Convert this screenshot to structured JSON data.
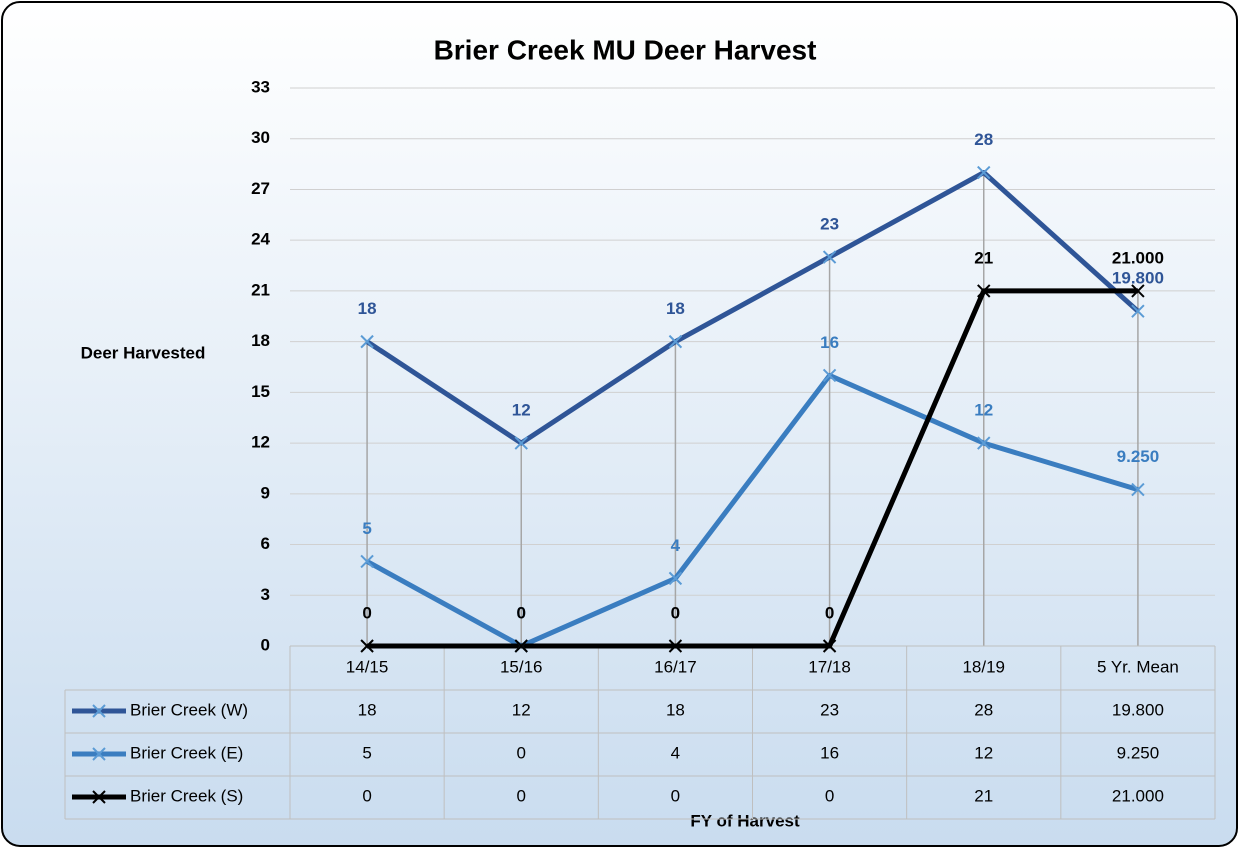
{
  "chart_data": {
    "type": "line",
    "title": "Brier Creek MU Deer Harvest",
    "y_axis_label": "Deer Harvested",
    "x_axis_label": "FY of Harvest",
    "categories": [
      "14/15",
      "15/16",
      "16/17",
      "17/18",
      "18/19",
      "5 Yr. Mean"
    ],
    "series": [
      {
        "name": "Brier Creek (W)",
        "color": "#2f5597",
        "values": [
          18,
          12,
          18,
          23,
          28,
          19.8
        ],
        "value_labels": [
          "18",
          "12",
          "18",
          "23",
          "28",
          "19.800"
        ]
      },
      {
        "name": "Brier Creek (E)",
        "color": "#3a7dc0",
        "values": [
          5,
          0,
          4,
          16,
          12,
          9.25
        ],
        "value_labels": [
          "5",
          "0",
          "4",
          "16",
          "12",
          "9.250"
        ]
      },
      {
        "name": "Brier Creek (S)",
        "color": "#000000",
        "values": [
          0,
          0,
          0,
          0,
          21,
          21
        ],
        "value_labels": [
          "0",
          "0",
          "0",
          "0",
          "21",
          "21.000"
        ]
      }
    ],
    "ylim": [
      0,
      33
    ],
    "yticks": [
      0,
      3,
      6,
      9,
      12,
      15,
      18,
      21,
      24,
      27,
      30,
      33
    ],
    "grid": true,
    "data_table": true
  }
}
